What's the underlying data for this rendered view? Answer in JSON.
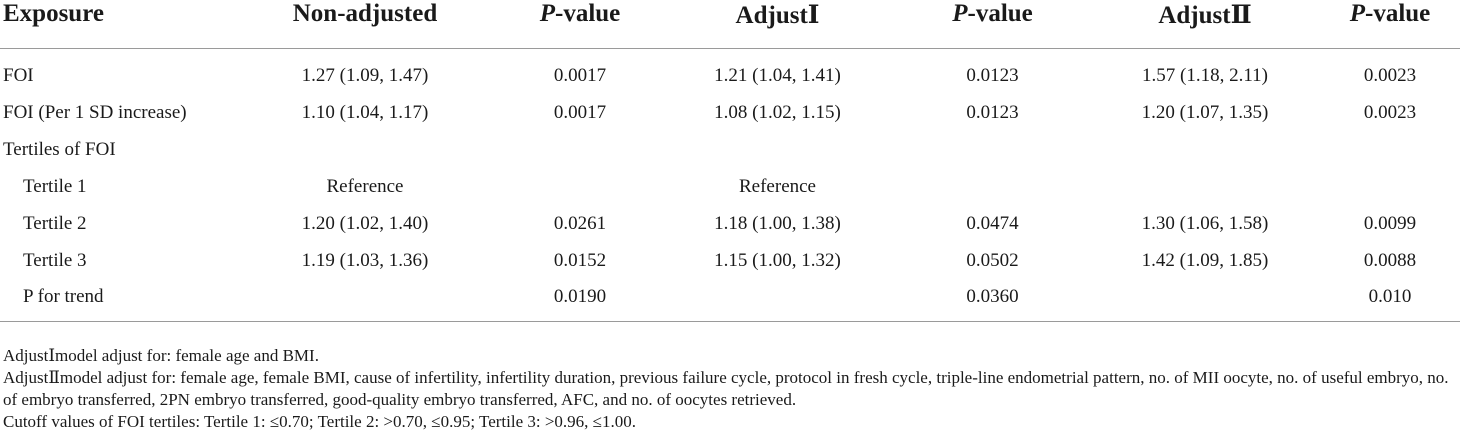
{
  "table": {
    "headers": [
      {
        "text": "Exposure",
        "p": false
      },
      {
        "text": "Non-adjusted",
        "p": false
      },
      {
        "text": "-value",
        "p": true
      },
      {
        "text": "AdjustⅠ",
        "p": false
      },
      {
        "text": "-value",
        "p": true
      },
      {
        "text": "AdjustⅡ",
        "p": false
      },
      {
        "text": "-value",
        "p": true
      }
    ],
    "p_letter": "P",
    "rows": [
      {
        "label": "FOI",
        "cells": [
          "1.27 (1.09, 1.47)",
          "0.0017",
          "1.21 (1.04, 1.41)",
          "0.0123",
          "1.57 (1.18, 2.11)",
          "0.0023"
        ]
      },
      {
        "label": "FOI (Per 1 SD increase)",
        "cells": [
          "1.10 (1.04, 1.17)",
          "0.0017",
          "1.08 (1.02, 1.15)",
          "0.0123",
          "1.20 (1.07, 1.35)",
          "0.0023"
        ]
      },
      {
        "label": "Tertiles of FOI",
        "cells": [
          "",
          "",
          "",
          "",
          "",
          ""
        ]
      },
      {
        "label": "Tertile 1",
        "cells": [
          "Reference",
          "",
          "Reference",
          "",
          "",
          ""
        ]
      },
      {
        "label": "Tertile 2",
        "cells": [
          "1.20 (1.02, 1.40)",
          "0.0261",
          "1.18 (1.00, 1.38)",
          "0.0474",
          "1.30 (1.06, 1.58)",
          "0.0099"
        ]
      },
      {
        "label": "Tertile 3",
        "cells": [
          "1.19 (1.03, 1.36)",
          "0.0152",
          "1.15 (1.00, 1.32)",
          "0.0502",
          "1.42 (1.09, 1.85)",
          "0.0088"
        ]
      },
      {
        "label": "P for trend",
        "cells": [
          "",
          "0.0190",
          "",
          "0.0360",
          "",
          "0.010"
        ]
      }
    ]
  },
  "notes": [
    "AdjustⅠmodel adjust for: female age and BMI.",
    "AdjustⅡmodel adjust for: female age, female BMI, cause of infertility, infertility duration, previous failure cycle, protocol in fresh cycle, triple-line endometrial pattern, no. of MII oocyte, no. of useful embryo, no. of embryo transferred, 2PN embryo transferred, good-quality embryo transferred, AFC, and no. of oocytes retrieved.",
    "Cutoff values of FOI tertiles: Tertile 1: ≤0.70; Tertile 2: >0.70, ≤0.95; Tertile 3: >0.96, ≤1.00."
  ]
}
